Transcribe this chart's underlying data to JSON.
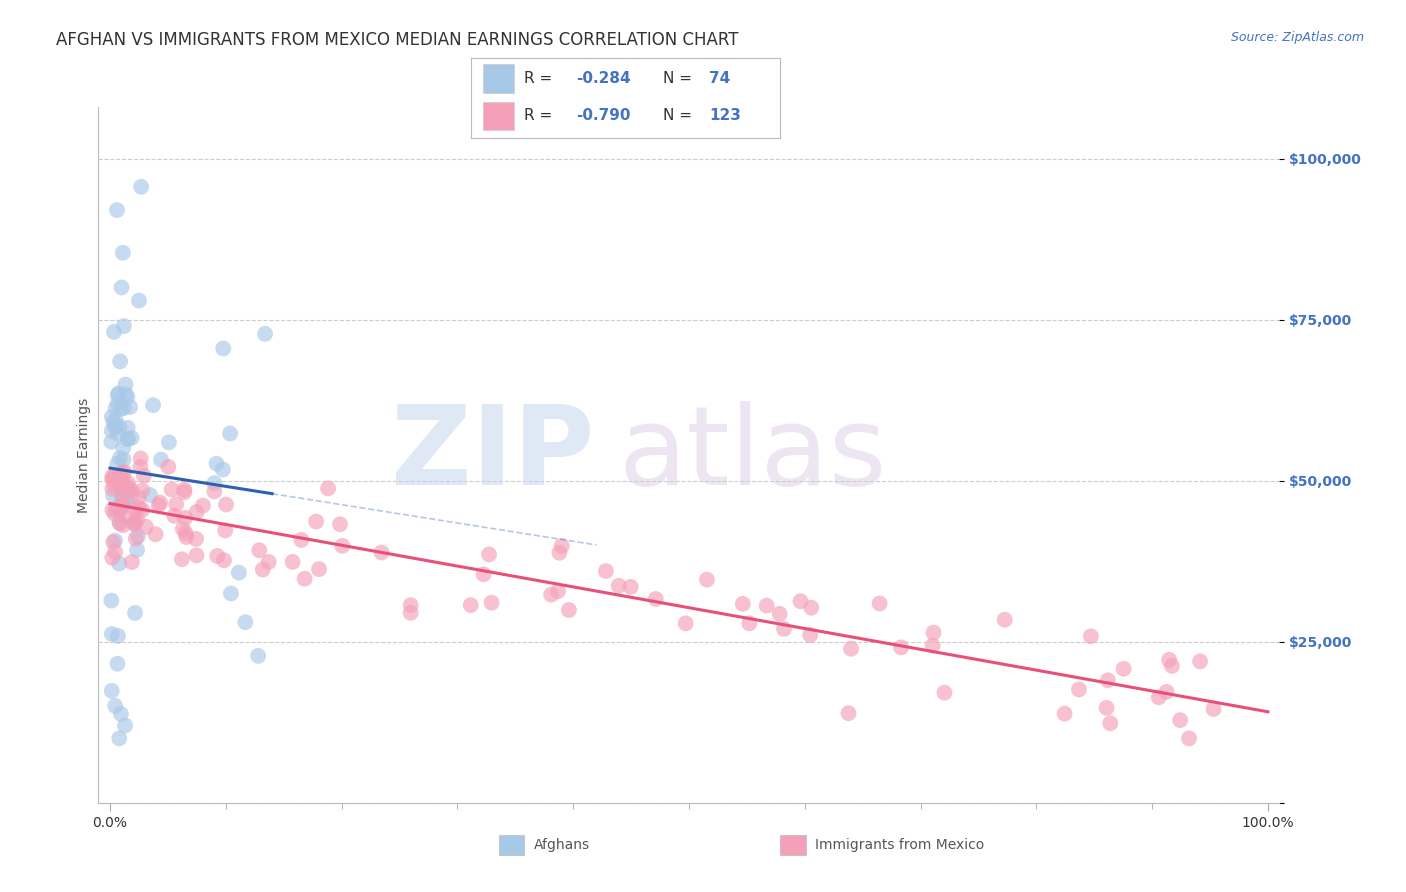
{
  "title": "AFGHAN VS IMMIGRANTS FROM MEXICO MEDIAN EARNINGS CORRELATION CHART",
  "source": "Source: ZipAtlas.com",
  "ylabel": "Median Earnings",
  "watermark_zip": "ZIP",
  "watermark_atlas": "atlas",
  "legend_blue_R": "-0.284",
  "legend_blue_N": "74",
  "legend_pink_R": "-0.790",
  "legend_pink_N": "123",
  "ytick_labels": [
    "",
    "$25,000",
    "$50,000",
    "$75,000",
    "$100,000"
  ],
  "ytick_values": [
    0,
    25000,
    50000,
    75000,
    100000
  ],
  "blue_color": "#a8c8e8",
  "pink_color": "#f4a0b8",
  "blue_line_color": "#3060b0",
  "pink_line_color": "#e8507a",
  "title_fontsize": 12,
  "axis_label_fontsize": 10,
  "tick_fontsize": 10,
  "background_color": "#ffffff",
  "grid_color": "#cccccc",
  "title_color": "#333333",
  "value_color": "#4472c4",
  "source_color": "#4472c4",
  "label_color": "#555555",
  "xtick_color": "#333333"
}
